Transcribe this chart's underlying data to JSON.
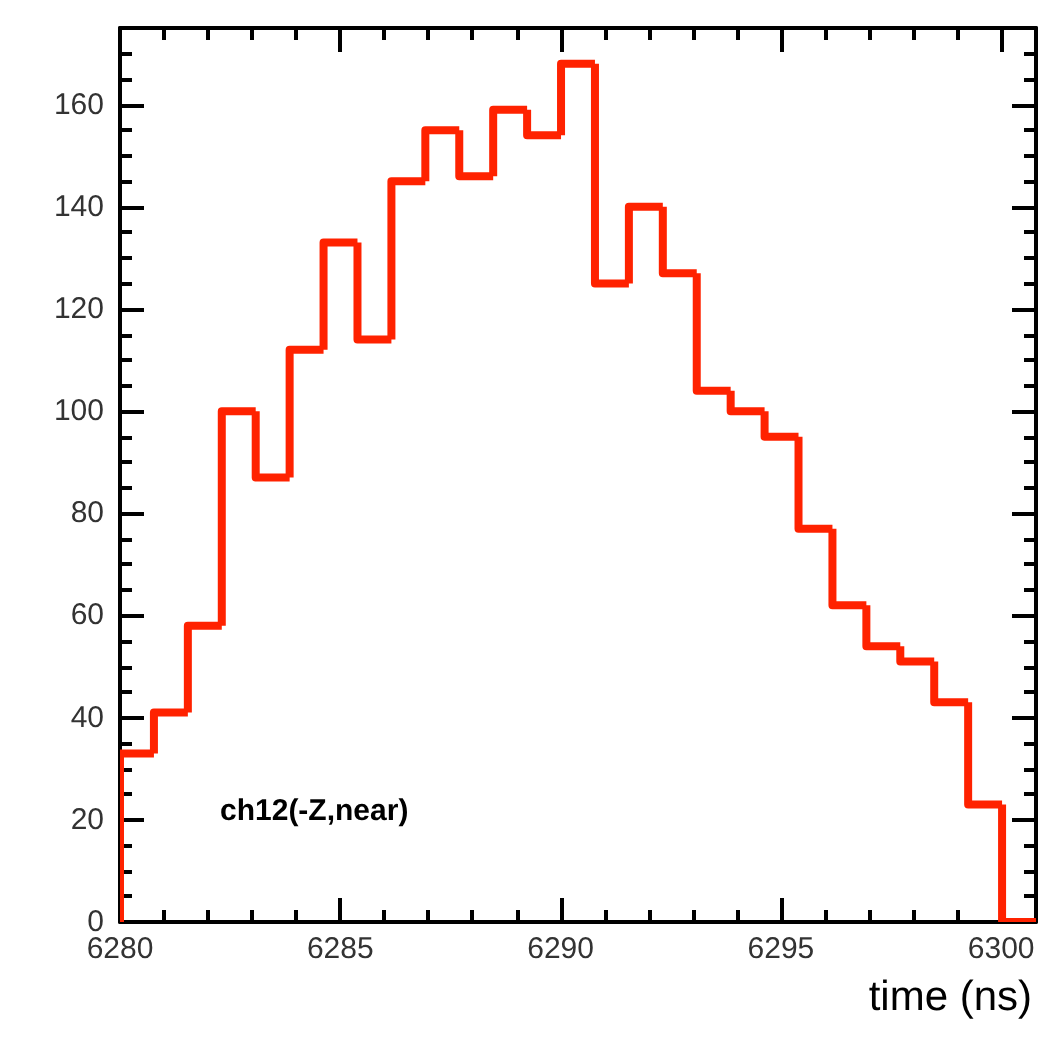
{
  "chart_data": {
    "type": "histogram",
    "xlabel": "time (ns)",
    "annotations": [
      "ch12(-Z,near)"
    ],
    "bins": [
      6280,
      6280.77,
      6281.54,
      6282.31,
      6283.08,
      6283.85,
      6284.62,
      6285.39,
      6286.16,
      6286.93,
      6287.7,
      6288.47,
      6289.24,
      6290.01,
      6290.78,
      6291.55,
      6292.32,
      6293.09,
      6293.86,
      6294.63,
      6295.4,
      6296.17,
      6296.94,
      6297.71,
      6298.48,
      6299.25,
      6300.02,
      6300.79
    ],
    "values": [
      33,
      41,
      58,
      100,
      87,
      112,
      133,
      114,
      145,
      155,
      146,
      159,
      154,
      168,
      125,
      140,
      127,
      104,
      100,
      95,
      77,
      62,
      54,
      51,
      43,
      23,
      0
    ],
    "color": "#ff2200",
    "xlim": [
      6280,
      6300.79
    ],
    "xticks": [
      6280,
      6285,
      6290,
      6295,
      6300
    ],
    "ylim": [
      0,
      175
    ],
    "yticks": [
      0,
      20,
      40,
      60,
      80,
      100,
      120,
      140,
      160
    ],
    "grid": false
  }
}
